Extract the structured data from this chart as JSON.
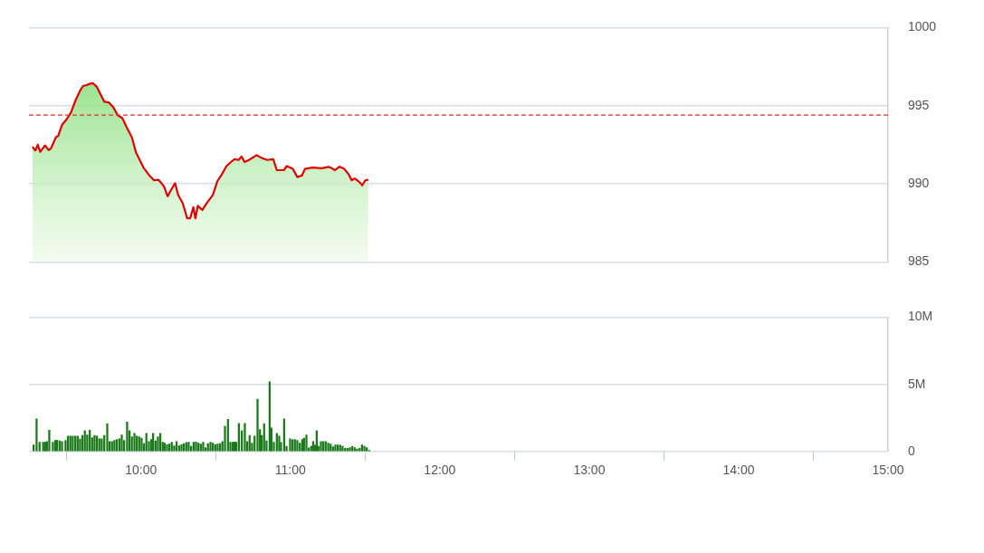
{
  "chart_data": [
    {
      "type": "area",
      "xlim": [
        9.25,
        15
      ],
      "ylim": [
        985,
        1000
      ],
      "yticks": [
        985,
        990,
        995,
        1000
      ],
      "grid": "y",
      "tick_labels": "y",
      "ref_lines": [
        {
          "axis": "y",
          "value": 994.4,
          "color": "#e03030",
          "line_style": "dashed"
        }
      ],
      "series": [
        {
          "color": "#e00000",
          "x": [
            9.273,
            9.293,
            9.309,
            9.325,
            9.358,
            9.382,
            9.398,
            9.43,
            9.446,
            9.471,
            9.501,
            9.531,
            9.562,
            9.592,
            9.612,
            9.636,
            9.657,
            9.677,
            9.703,
            9.723,
            9.754,
            9.784,
            9.814,
            9.844,
            9.875,
            9.905,
            9.939,
            9.966,
            10.016,
            10.057,
            10.087,
            10.117,
            10.133,
            10.154,
            10.178,
            10.198,
            10.228,
            10.248,
            10.279,
            10.309,
            10.329,
            10.35,
            10.364,
            10.38,
            10.41,
            10.44,
            10.481,
            10.511,
            10.541,
            10.572,
            10.602,
            10.626,
            10.653,
            10.673,
            10.693,
            10.723,
            10.774,
            10.804,
            10.844,
            10.885,
            10.909,
            10.956,
            10.976,
            11.016,
            11.046,
            11.077,
            11.097,
            11.147,
            11.208,
            11.259,
            11.299,
            11.329,
            11.36,
            11.39,
            11.41,
            11.43,
            11.461,
            11.481,
            11.501,
            11.521
          ],
          "values": [
            992.37,
            992.14,
            992.51,
            992.05,
            992.46,
            992.16,
            992.28,
            992.98,
            993.07,
            993.77,
            994.12,
            994.56,
            995.35,
            995.96,
            996.26,
            996.32,
            996.4,
            996.44,
            996.23,
            995.84,
            995.26,
            995.21,
            994.91,
            994.39,
            994.21,
            993.6,
            992.98,
            992.02,
            991.05,
            990.53,
            990.23,
            990.26,
            990.09,
            989.83,
            989.21,
            989.56,
            990.05,
            989.3,
            988.77,
            987.8,
            987.8,
            988.51,
            987.8,
            988.6,
            988.33,
            988.77,
            989.3,
            990.17,
            990.61,
            991.14,
            991.4,
            991.58,
            991.53,
            991.75,
            991.4,
            991.53,
            991.84,
            991.67,
            991.53,
            991.58,
            990.88,
            990.88,
            991.14,
            990.96,
            990.44,
            990.53,
            990.96,
            991.05,
            991.0,
            991.09,
            990.88,
            991.1,
            990.96,
            990.61,
            990.23,
            990.35,
            990.12,
            989.91,
            990.23,
            990.26
          ]
        }
      ]
    },
    {
      "type": "bar",
      "color": "#1a7a1a",
      "xlim": [
        9.25,
        15
      ],
      "xticks": [
        {
          "value": 10,
          "label": "10:00"
        },
        {
          "value": 11,
          "label": "11:00"
        },
        {
          "value": 12,
          "label": "12:00"
        },
        {
          "value": 13,
          "label": "13:00"
        },
        {
          "value": 14,
          "label": "14:00"
        },
        {
          "value": 15,
          "label": "15:00"
        }
      ],
      "ylim": [
        0,
        10
      ],
      "yticks": [
        0,
        {
          "value": 5,
          "label": "5M"
        },
        {
          "value": 10,
          "label": "10M"
        }
      ],
      "grid": "y",
      "x": [
        9.281,
        9.301,
        9.321,
        9.345,
        9.358,
        9.37,
        9.386,
        9.41,
        9.426,
        9.438,
        9.455,
        9.471,
        9.495,
        9.511,
        9.527,
        9.543,
        9.56,
        9.576,
        9.592,
        9.608,
        9.624,
        9.64,
        9.657,
        9.673,
        9.689,
        9.705,
        9.721,
        9.737,
        9.754,
        9.774,
        9.79,
        9.806,
        9.822,
        9.838,
        9.855,
        9.871,
        9.887,
        9.907,
        9.923,
        9.939,
        9.956,
        9.972,
        9.988,
        10.004,
        10.02,
        10.036,
        10.053,
        10.069,
        10.081,
        10.097,
        10.113,
        10.129,
        10.145,
        10.158,
        10.174,
        10.19,
        10.206,
        10.222,
        10.238,
        10.255,
        10.271,
        10.287,
        10.303,
        10.319,
        10.335,
        10.352,
        10.368,
        10.384,
        10.4,
        10.416,
        10.432,
        10.448,
        10.465,
        10.481,
        10.497,
        10.513,
        10.529,
        10.545,
        10.562,
        10.582,
        10.598,
        10.614,
        10.626,
        10.638,
        10.655,
        10.675,
        10.695,
        10.711,
        10.727,
        10.743,
        10.76,
        10.78,
        10.796,
        10.808,
        10.824,
        10.84,
        10.861,
        10.873,
        10.889,
        10.909,
        10.925,
        10.937,
        10.958,
        10.974,
        10.998,
        11.014,
        11.03,
        11.046,
        11.063,
        11.079,
        11.091,
        11.107,
        11.123,
        11.139,
        11.152,
        11.164,
        11.176,
        11.188,
        11.204,
        11.22,
        11.236,
        11.253,
        11.269,
        11.285,
        11.301,
        11.317,
        11.333,
        11.349,
        11.366,
        11.382,
        11.398,
        11.414,
        11.43,
        11.446,
        11.463,
        11.479,
        11.495,
        11.511,
        11.527
      ],
      "values": [
        0.5,
        2.44,
        0.7,
        0.7,
        0.7,
        0.76,
        1.6,
        0.7,
        0.84,
        0.86,
        0.8,
        0.76,
        0.84,
        1.16,
        1.16,
        1.16,
        1.16,
        1.16,
        0.94,
        1.2,
        1.56,
        1.24,
        1.6,
        1.04,
        1.2,
        1.16,
        0.96,
        0.96,
        1.2,
        2.08,
        0.76,
        0.76,
        0.84,
        0.9,
        0.96,
        1.24,
        0.84,
        2.2,
        1.56,
        1.1,
        1.36,
        1.16,
        1.1,
        1.0,
        0.6,
        1.36,
        0.76,
        0.9,
        1.36,
        0.8,
        1.1,
        1.36,
        0.7,
        0.64,
        0.52,
        0.56,
        0.7,
        0.44,
        0.76,
        0.44,
        0.52,
        0.6,
        0.68,
        0.7,
        0.4,
        0.7,
        0.72,
        0.64,
        0.56,
        0.7,
        0.3,
        0.6,
        0.7,
        0.64,
        0.52,
        0.56,
        0.6,
        0.76,
        1.9,
        2.4,
        0.7,
        0.7,
        0.72,
        0.7,
        2.1,
        1.56,
        2.1,
        0.76,
        1.2,
        0.64,
        1.16,
        3.9,
        1.64,
        1.2,
        2.08,
        0.8,
        5.2,
        1.76,
        0.7,
        1.36,
        1.16,
        0.68,
        2.44,
        0.4,
        0.96,
        0.88,
        0.9,
        0.84,
        0.64,
        0.9,
        1.0,
        1.24,
        0.28,
        0.4,
        0.76,
        0.48,
        1.56,
        0.4,
        0.76,
        0.76,
        0.76,
        0.64,
        0.56,
        0.36,
        0.5,
        0.5,
        0.48,
        0.4,
        0.24,
        0.24,
        0.3,
        0.4,
        0.3,
        0.2,
        0.24,
        0.5,
        0.4,
        0.3,
        0.1
      ]
    }
  ]
}
